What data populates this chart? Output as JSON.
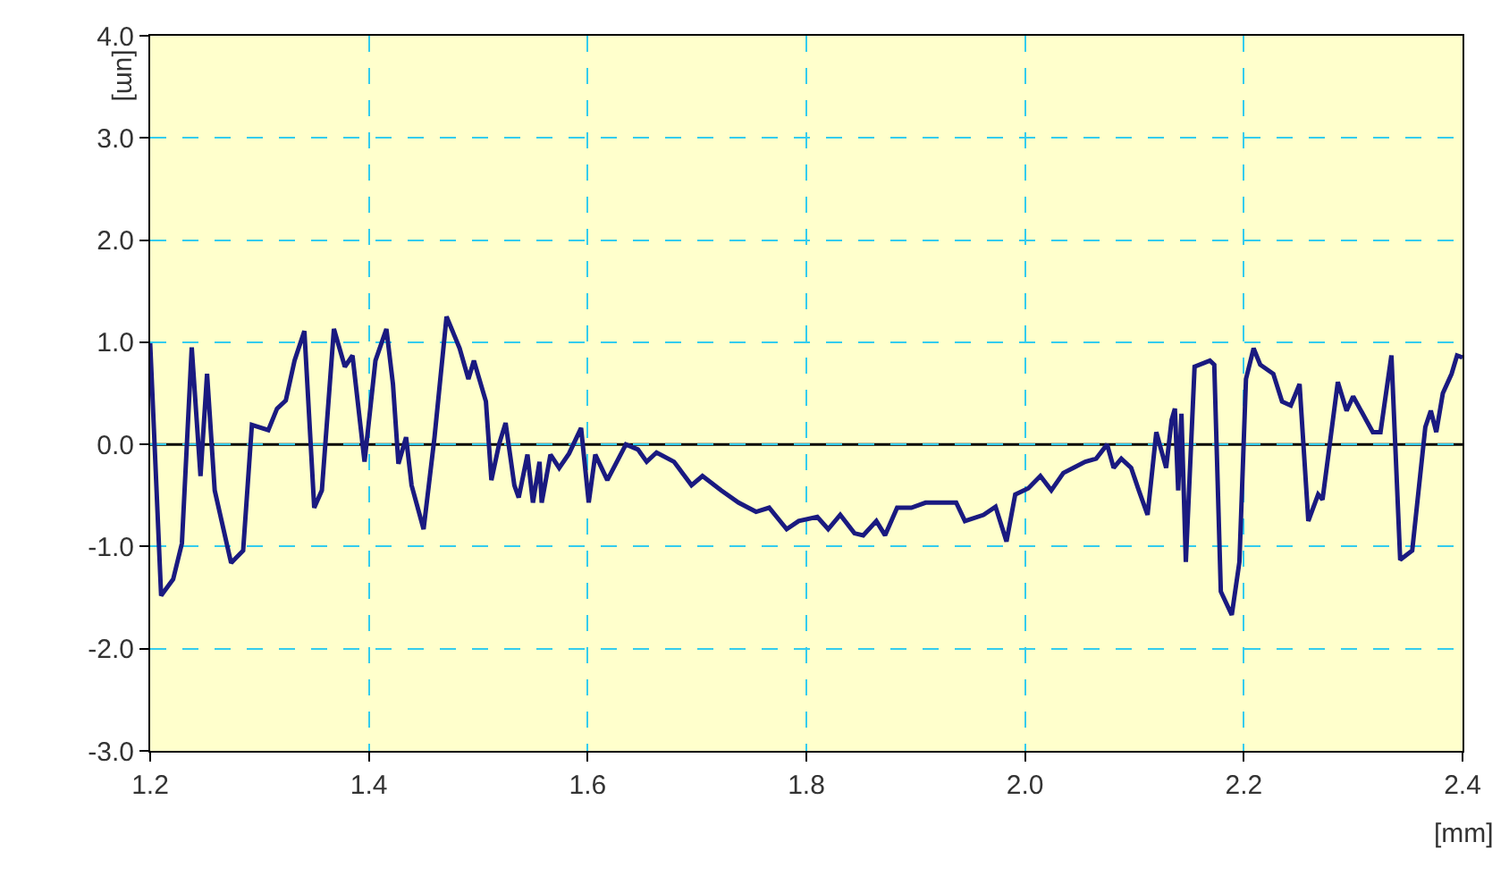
{
  "chart_data": {
    "type": "line",
    "xlabel": "[mm]",
    "ylabel": "[um]",
    "xlim": [
      1.2,
      2.4
    ],
    "xticks": [
      1.2,
      1.4,
      1.6,
      1.8,
      {
        "value": 2,
        "label": "2.0"
      },
      2.2,
      2.4
    ],
    "ylim": [
      -3,
      4
    ],
    "yticks": [
      {
        "value": -3,
        "label": "-3.0"
      },
      {
        "value": -2,
        "label": "-2.0"
      },
      {
        "value": -1,
        "label": "-1.0"
      },
      {
        "value": 0,
        "label": "0.0"
      },
      {
        "value": 1,
        "label": "1.0"
      },
      {
        "value": 2,
        "label": "2.0"
      },
      {
        "value": 3,
        "label": "3.0"
      },
      {
        "value": 4,
        "label": "4.0"
      }
    ],
    "grid": true,
    "marker": "none",
    "line_style": "solid",
    "ref_lines": [
      {
        "axis": "y",
        "value": 0,
        "label": null,
        "color": "#000000"
      }
    ],
    "series": [
      {
        "color": "#1a1a80",
        "x": [
          1.2,
          1.21,
          1.221,
          1.229,
          1.238,
          1.246,
          1.252,
          1.259,
          1.274,
          1.285,
          1.293,
          1.308,
          1.316,
          1.324,
          1.332,
          1.341,
          1.35,
          1.357,
          1.368,
          1.378,
          1.385,
          1.396,
          1.406,
          1.416,
          1.422,
          1.427,
          1.434,
          1.439,
          1.45,
          1.46,
          1.471,
          1.483,
          1.491,
          1.496,
          1.507,
          1.512,
          1.519,
          1.525,
          1.533,
          1.537,
          1.545,
          1.55,
          1.556,
          1.558,
          1.566,
          1.574,
          1.583,
          1.594,
          1.601,
          1.607,
          1.618,
          1.635,
          1.646,
          1.654,
          1.663,
          1.679,
          1.695,
          1.705,
          1.722,
          1.738,
          1.754,
          1.766,
          1.782,
          1.793,
          1.81,
          1.82,
          1.831,
          1.844,
          1.852,
          1.864,
          1.872,
          1.883,
          1.896,
          1.909,
          1.924,
          1.937,
          1.945,
          1.962,
          1.973,
          1.983,
          1.991,
          2.003,
          2.014,
          2.024,
          2.035,
          2.044,
          2.055,
          2.065,
          2.075,
          2.081,
          2.088,
          2.097,
          2.104,
          2.112,
          2.12,
          2.129,
          2.134,
          2.137,
          2.14,
          2.143,
          2.147,
          2.155,
          2.169,
          2.173,
          2.179,
          2.189,
          2.196,
          2.202,
          2.209,
          2.215,
          2.227,
          2.235,
          2.243,
          2.251,
          2.259,
          2.268,
          2.272,
          2.286,
          2.294,
          2.3,
          2.318,
          2.325,
          2.335,
          2.343,
          2.354,
          2.366,
          2.371,
          2.376,
          2.382,
          2.39,
          2.395,
          2.4
        ],
        "values": [
          0.99,
          -1.48,
          -1.32,
          -0.97,
          0.95,
          -0.31,
          0.69,
          -0.45,
          -1.16,
          -1.04,
          0.19,
          0.14,
          0.35,
          0.43,
          0.82,
          1.11,
          -0.62,
          -0.45,
          1.13,
          0.76,
          0.87,
          -0.17,
          0.82,
          1.13,
          0.59,
          -0.19,
          0.07,
          -0.4,
          -0.83,
          0.07,
          1.25,
          0.94,
          0.64,
          0.82,
          0.42,
          -0.35,
          0.0,
          0.21,
          -0.4,
          -0.52,
          -0.1,
          -0.57,
          -0.17,
          -0.57,
          -0.1,
          -0.23,
          -0.09,
          0.16,
          -0.57,
          -0.1,
          -0.35,
          0.0,
          -0.05,
          -0.17,
          -0.08,
          -0.17,
          -0.4,
          -0.31,
          -0.45,
          -0.57,
          -0.66,
          -0.62,
          -0.83,
          -0.75,
          -0.71,
          -0.83,
          -0.69,
          -0.87,
          -0.89,
          -0.75,
          -0.89,
          -0.62,
          -0.62,
          -0.57,
          -0.57,
          -0.57,
          -0.75,
          -0.69,
          -0.61,
          -0.95,
          -0.49,
          -0.43,
          -0.31,
          -0.45,
          -0.28,
          -0.23,
          -0.17,
          -0.14,
          0.0,
          -0.23,
          -0.14,
          -0.23,
          -0.45,
          -0.69,
          0.12,
          -0.23,
          0.24,
          0.35,
          -0.45,
          0.3,
          -1.15,
          0.76,
          0.82,
          0.78,
          -1.44,
          -1.67,
          -1.15,
          0.64,
          0.94,
          0.78,
          0.69,
          0.42,
          0.38,
          0.59,
          -0.75,
          -0.49,
          -0.54,
          0.61,
          0.33,
          0.47,
          0.12,
          0.12,
          0.87,
          -1.13,
          -1.04,
          0.17,
          0.33,
          0.12,
          0.5,
          0.69,
          0.87,
          0.85
        ]
      }
    ]
  }
}
